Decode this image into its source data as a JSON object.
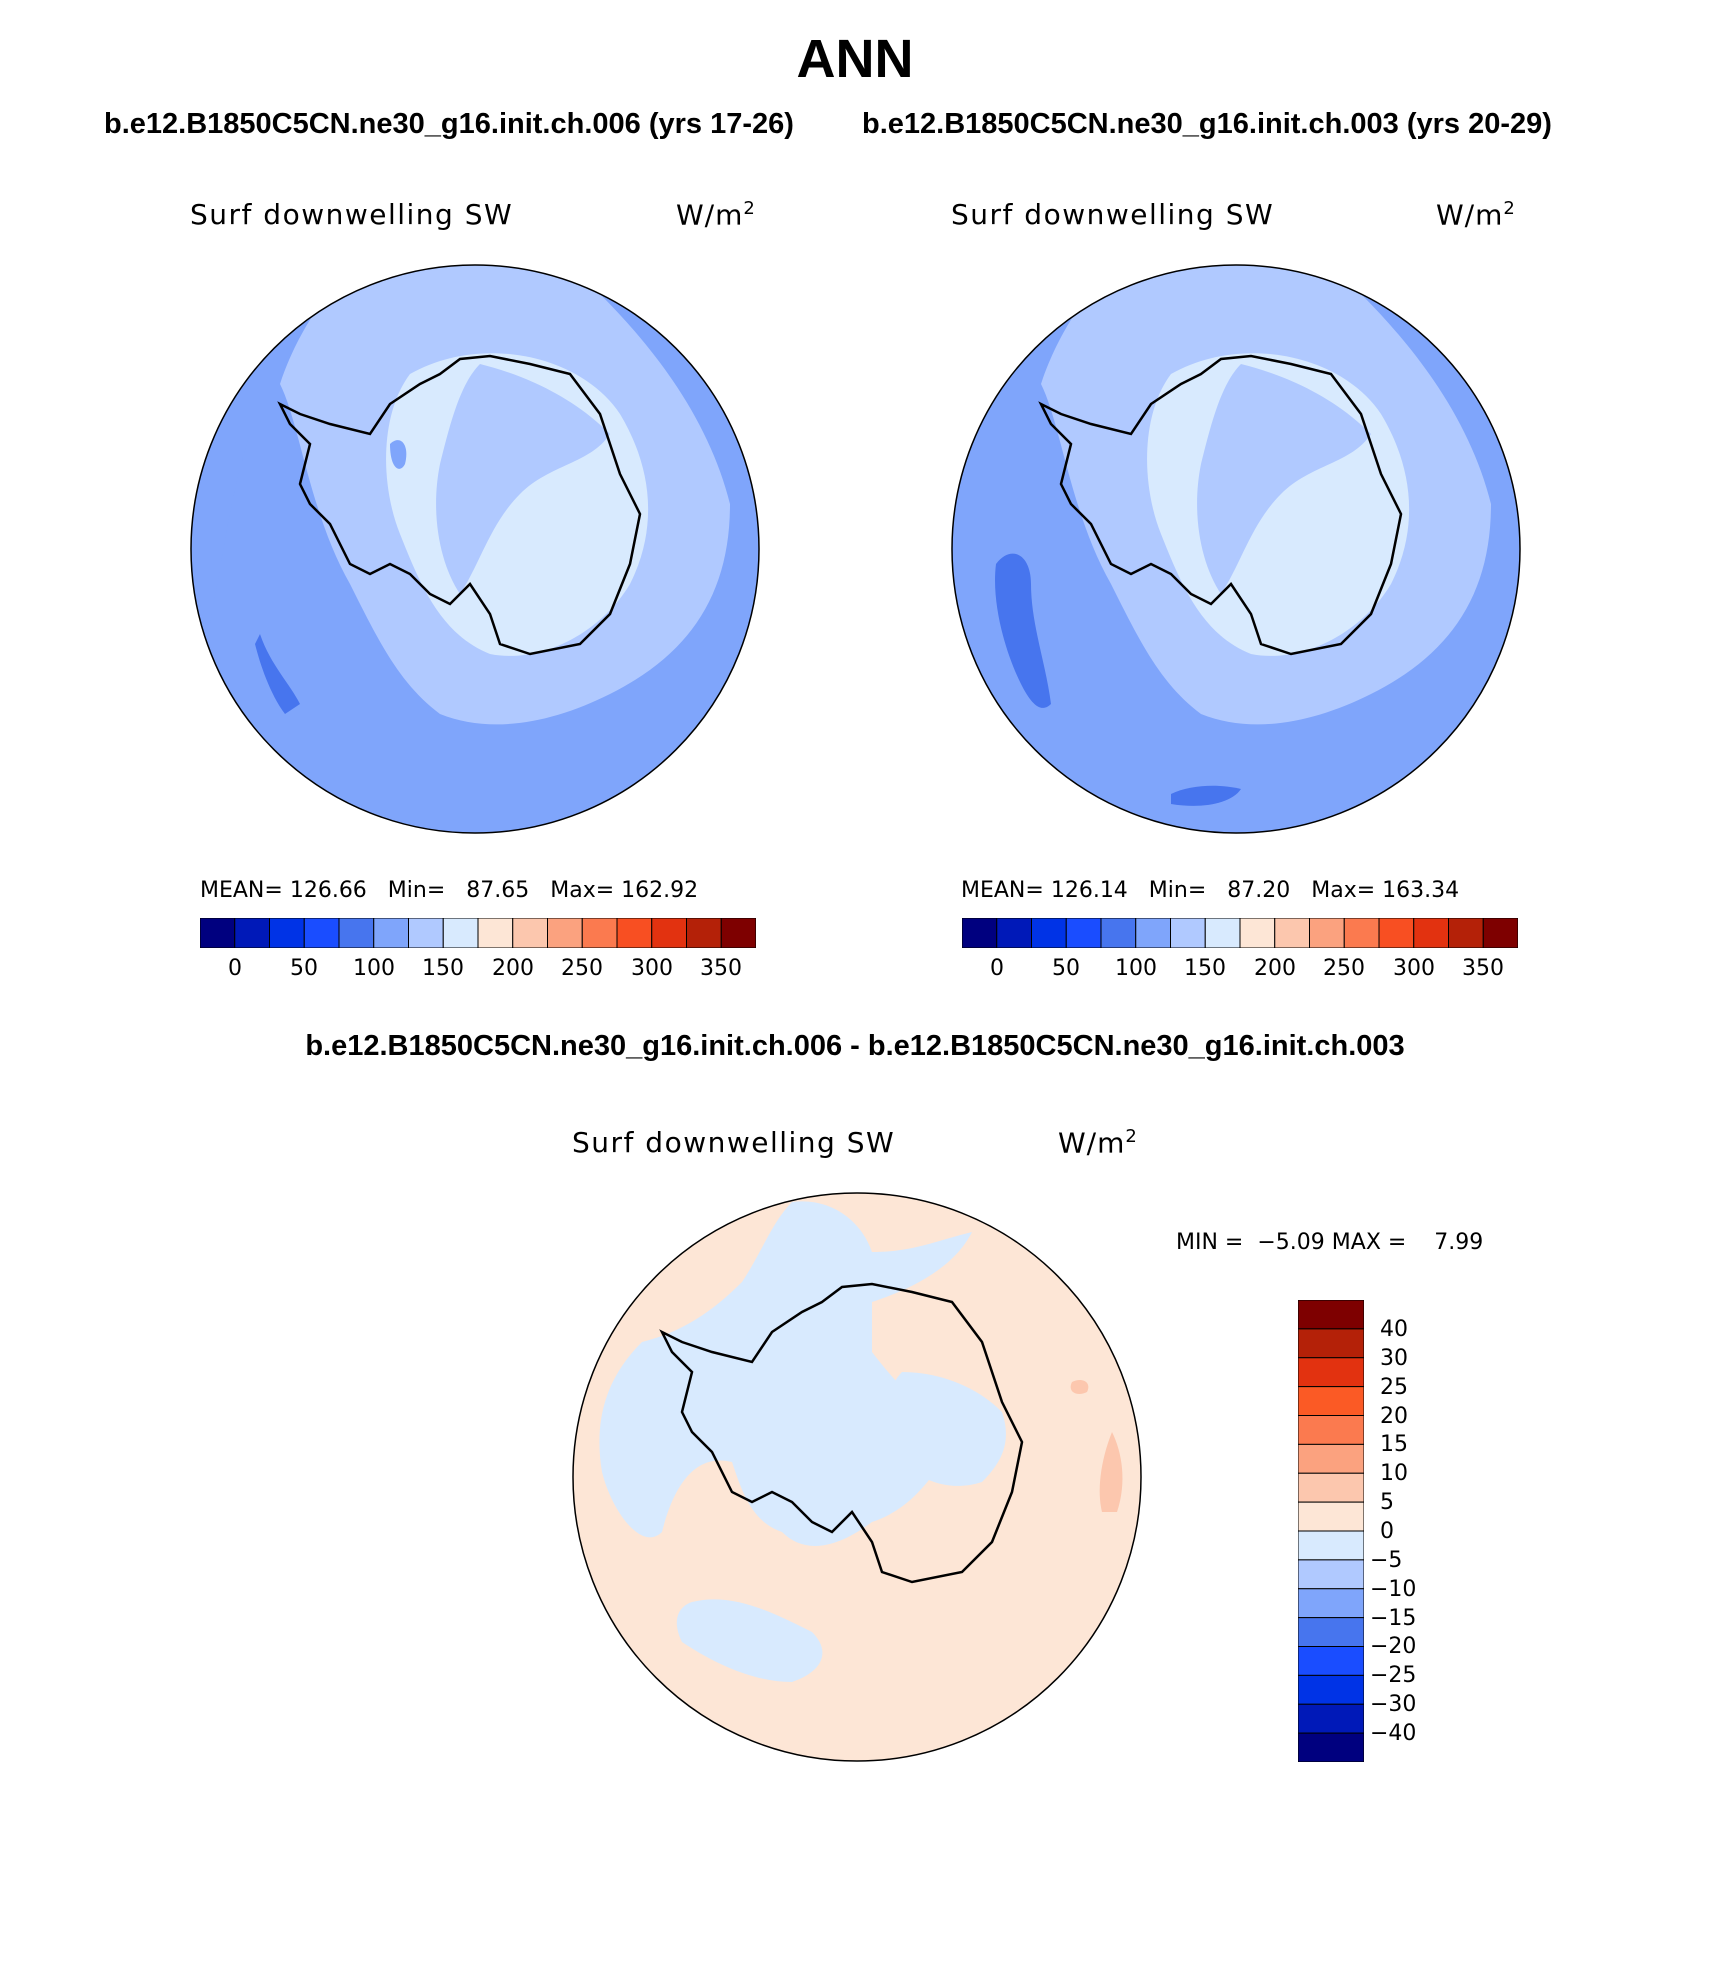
{
  "figure": {
    "title": "ANN",
    "diff_title": "b.e12.B1850C5CN.ne30_g16.init.ch.006 - b.e12.B1850C5CN.ne30_g16.init.ch.003"
  },
  "panels": [
    {
      "case_title": "b.e12.B1850C5CN.ne30_g16.init.ch.006 (yrs 17-26)",
      "variable": "Surf downwelling SW",
      "units": "W/m",
      "units_exp": "2",
      "stats": {
        "mean_label": "MEAN=",
        "mean": "126.66",
        "min_label": "Min=",
        "min": "87.65",
        "max_label": "Max=",
        "max": "162.92"
      }
    },
    {
      "case_title": "b.e12.B1850C5CN.ne30_g16.init.ch.003 (yrs 20-29)",
      "variable": "Surf downwelling SW",
      "units": "W/m",
      "units_exp": "2",
      "stats": {
        "mean_label": "MEAN=",
        "mean": "126.14",
        "min_label": "Min=",
        "min": "87.20",
        "max_label": "Max=",
        "max": "163.34"
      }
    },
    {
      "variable": "Surf downwelling SW",
      "units": "W/m",
      "units_exp": "2",
      "stats": {
        "min_label": "MIN =",
        "min": "−5.09",
        "max_label": "MAX =",
        "max": "7.99"
      }
    }
  ],
  "colorbars": {
    "abs": {
      "colors": [
        "#00007f",
        "#0019b8",
        "#0033e6",
        "#1a4dff",
        "#4775ee",
        "#7fa5fb",
        "#b0c9ff",
        "#d8eafe",
        "#fde6d6",
        "#fcc7ae",
        "#fba27f",
        "#fb7a4f",
        "#f84f22",
        "#e23210",
        "#b42108",
        "#7e0000"
      ],
      "tick_labels": [
        "0",
        "50",
        "100",
        "150",
        "200",
        "250",
        "300",
        "350"
      ]
    },
    "diff": {
      "colors": [
        "#7e0000",
        "#b42108",
        "#e23210",
        "#fb5a25",
        "#fb7a4f",
        "#fba27f",
        "#fcc7ae",
        "#fde6d6",
        "#d8eafe",
        "#b0c9ff",
        "#7fa5fb",
        "#4775ee",
        "#1a4dff",
        "#0033e6",
        "#0019b8",
        "#00007f"
      ],
      "tick_labels": [
        "40",
        "30",
        "25",
        "20",
        "15",
        "10",
        "5",
        "0",
        "−5",
        "−10",
        "−15",
        "−20",
        "−25",
        "−30",
        "−40"
      ]
    }
  },
  "map_colors": {
    "continent_outline": "#000000",
    "ocean_fill": "#7fa5fb",
    "band_fill": "#b0c9ff",
    "interior_fill": "#d8eafe",
    "low_fill": "#4775ee",
    "diff_pos": "#fde6d6",
    "diff_neg": "#d8eafe",
    "diff_pos2": "#fcc7ae"
  }
}
